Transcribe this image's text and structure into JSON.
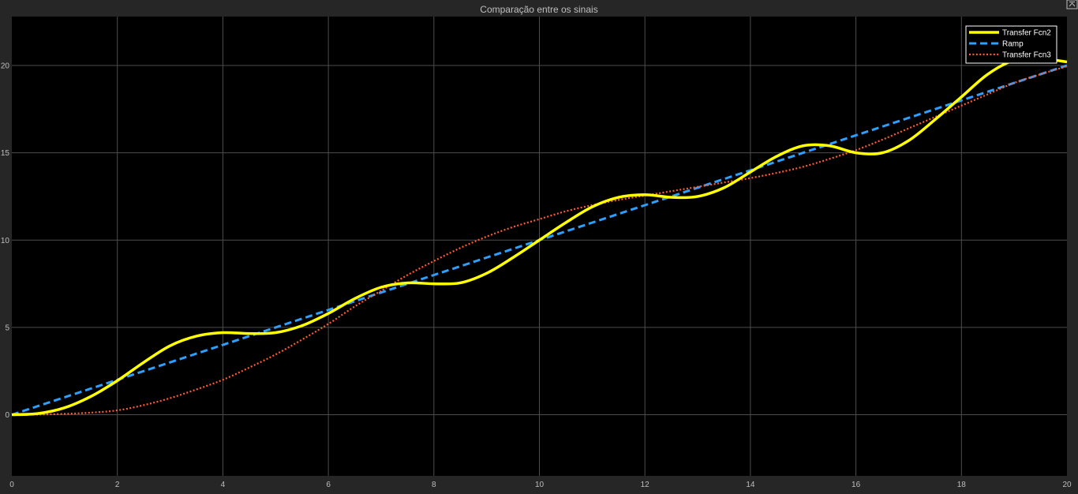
{
  "window": {
    "title": "Comparação entre os sinais",
    "restore_icon": "restore-icon"
  },
  "chart_data": {
    "type": "line",
    "title": "Comparação entre os sinais",
    "xlabel": "",
    "ylabel": "",
    "xlim": [
      0,
      20
    ],
    "ylim": [
      -3.5,
      22.8
    ],
    "xticks": [
      0,
      2,
      4,
      6,
      8,
      10,
      12,
      14,
      16,
      18,
      20
    ],
    "yticks": [
      0,
      5,
      10,
      15,
      20
    ],
    "grid": true,
    "legend_position": "top-right",
    "background": "#000000",
    "x": [
      0,
      0.5,
      1,
      1.5,
      2,
      2.5,
      3,
      3.5,
      4,
      4.5,
      5,
      5.5,
      6,
      6.5,
      7,
      7.5,
      8,
      8.5,
      9,
      9.5,
      10,
      10.5,
      11,
      11.5,
      12,
      12.5,
      13,
      13.5,
      14,
      14.5,
      15,
      15.5,
      16,
      16.5,
      17,
      17.5,
      18,
      18.5,
      19,
      19.5,
      20
    ],
    "series": [
      {
        "name": "Transfer Fcn2",
        "color": "#ffff00",
        "style": "solid",
        "values": [
          0,
          0.07,
          0.4,
          1.05,
          1.95,
          3.0,
          3.95,
          4.5,
          4.7,
          4.65,
          4.7,
          5.1,
          5.8,
          6.65,
          7.3,
          7.55,
          7.5,
          7.55,
          8.1,
          9.0,
          10.0,
          11.0,
          11.9,
          12.45,
          12.6,
          12.45,
          12.5,
          13.0,
          13.9,
          14.8,
          15.4,
          15.4,
          15.0,
          15.0,
          15.7,
          16.9,
          18.2,
          19.5,
          20.3,
          20.4,
          20.2
        ]
      },
      {
        "name": "Ramp",
        "color": "#2c9fff",
        "style": "dashed",
        "values": [
          0,
          0.5,
          1,
          1.5,
          2,
          2.5,
          3,
          3.5,
          4,
          4.5,
          5,
          5.5,
          6,
          6.5,
          7,
          7.5,
          8,
          8.5,
          9,
          9.5,
          10,
          10.5,
          11,
          11.5,
          12,
          12.5,
          13,
          13.5,
          14,
          14.5,
          15,
          15.5,
          16,
          16.5,
          17,
          17.5,
          18,
          18.5,
          19,
          19.5,
          20
        ]
      },
      {
        "name": "Transfer Fcn3",
        "color": "#ff5a36",
        "style": "dotted",
        "values": [
          0,
          0.01,
          0.05,
          0.12,
          0.25,
          0.55,
          0.95,
          1.45,
          2.0,
          2.7,
          3.45,
          4.3,
          5.2,
          6.2,
          7.1,
          8.0,
          8.8,
          9.55,
          10.2,
          10.75,
          11.2,
          11.65,
          12.0,
          12.3,
          12.55,
          12.8,
          13.05,
          13.3,
          13.55,
          13.85,
          14.2,
          14.65,
          15.15,
          15.75,
          16.4,
          17.05,
          17.7,
          18.35,
          19.0,
          19.5,
          19.95
        ]
      }
    ]
  }
}
